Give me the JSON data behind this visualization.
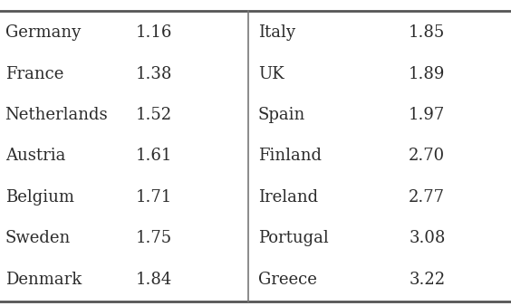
{
  "left_countries": [
    "Germany",
    "France",
    "Netherlands",
    "Austria",
    "Belgium",
    "Sweden",
    "Denmark"
  ],
  "left_values": [
    "1.16",
    "1.38",
    "1.52",
    "1.61",
    "1.71",
    "1.75",
    "1.84"
  ],
  "right_countries": [
    "Italy",
    "UK",
    "Spain",
    "Finland",
    "Ireland",
    "Portugal",
    "Greece"
  ],
  "right_values": [
    "1.85",
    "1.89",
    "1.97",
    "2.70",
    "2.77",
    "3.08",
    "3.22"
  ],
  "bg_color": "#ffffff",
  "text_color": "#2b2b2b",
  "line_color": "#777777",
  "top_line_color": "#555555",
  "font_size": 13.0,
  "figsize": [
    5.64,
    3.38
  ],
  "dpi": 100
}
